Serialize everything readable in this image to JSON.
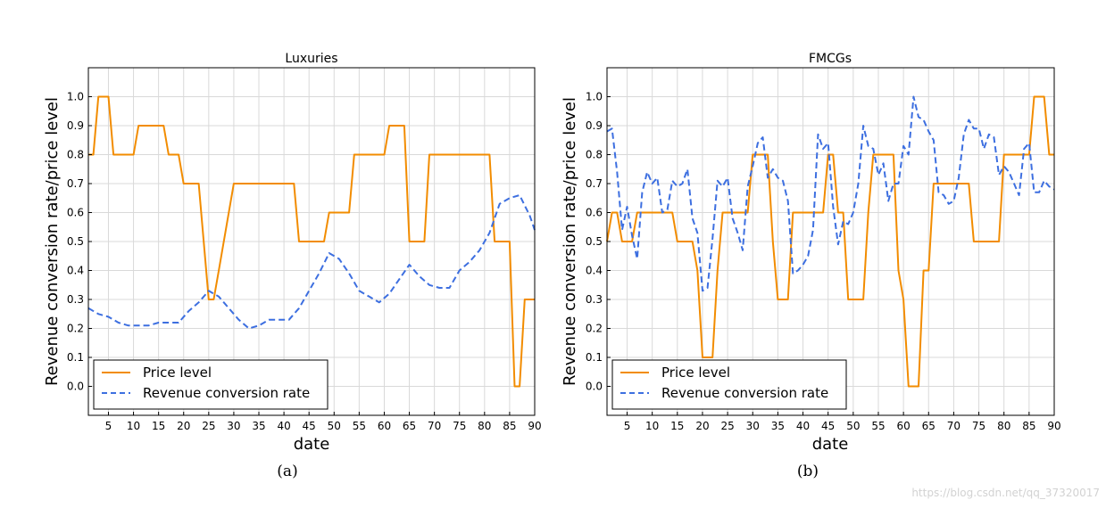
{
  "colors": {
    "price": "#f28c00",
    "revenue": "#3d6fe0",
    "grid": "#d9d9d9"
  },
  "watermark": "https://blog.csdn.net/qq_37320017",
  "chart_data": [
    {
      "type": "line",
      "title": "Luxuries",
      "caption": "(a)",
      "xlabel": "date",
      "ylabel": "Revenue conversion rate/price level",
      "xlim": [
        1,
        90
      ],
      "ylim": [
        -0.1,
        1.1
      ],
      "xticks": [
        5,
        10,
        15,
        20,
        25,
        30,
        35,
        40,
        45,
        50,
        55,
        60,
        65,
        70,
        75,
        80,
        85,
        90
      ],
      "yticks": [
        0.0,
        0.1,
        0.2,
        0.3,
        0.4,
        0.5,
        0.6,
        0.7,
        0.8,
        0.9,
        1.0
      ],
      "legend_position": "lower-left",
      "series": [
        {
          "name": "Price level",
          "style": "solid",
          "x": [
            1,
            2,
            3,
            4,
            5,
            6,
            7,
            8,
            9,
            10,
            11,
            12,
            13,
            14,
            15,
            16,
            17,
            18,
            19,
            20,
            21,
            22,
            23,
            24,
            25,
            26,
            27,
            28,
            29,
            30,
            31,
            32,
            33,
            34,
            35,
            36,
            37,
            38,
            39,
            40,
            41,
            42,
            43,
            44,
            45,
            46,
            47,
            48,
            49,
            50,
            51,
            52,
            53,
            54,
            55,
            56,
            57,
            58,
            59,
            60,
            61,
            62,
            63,
            64,
            65,
            66,
            67,
            68,
            69,
            70,
            71,
            72,
            73,
            74,
            75,
            76,
            77,
            78,
            79,
            80,
            81,
            82,
            83,
            84,
            85,
            86,
            87,
            88,
            89,
            90
          ],
          "values": [
            0.8,
            0.8,
            1.0,
            1.0,
            1.0,
            0.8,
            0.8,
            0.8,
            0.8,
            0.8,
            0.9,
            0.9,
            0.9,
            0.9,
            0.9,
            0.9,
            0.8,
            0.8,
            0.8,
            0.7,
            0.7,
            0.7,
            0.7,
            0.5,
            0.3,
            0.3,
            0.4,
            0.5,
            0.6,
            0.7,
            0.7,
            0.7,
            0.7,
            0.7,
            0.7,
            0.7,
            0.7,
            0.7,
            0.7,
            0.7,
            0.7,
            0.7,
            0.5,
            0.5,
            0.5,
            0.5,
            0.5,
            0.5,
            0.6,
            0.6,
            0.6,
            0.6,
            0.6,
            0.8,
            0.8,
            0.8,
            0.8,
            0.8,
            0.8,
            0.8,
            0.9,
            0.9,
            0.9,
            0.9,
            0.5,
            0.5,
            0.5,
            0.5,
            0.8,
            0.8,
            0.8,
            0.8,
            0.8,
            0.8,
            0.8,
            0.8,
            0.8,
            0.8,
            0.8,
            0.8,
            0.8,
            0.5,
            0.5,
            0.5,
            0.5,
            0.0,
            0.0,
            0.3,
            0.3,
            0.3
          ]
        },
        {
          "name": "Revenue conversion rate",
          "style": "dashed",
          "x": [
            1,
            3,
            5,
            7,
            9,
            11,
            13,
            15,
            17,
            19,
            21,
            23,
            25,
            27,
            29,
            31,
            33,
            35,
            37,
            39,
            41,
            43,
            45,
            47,
            49,
            51,
            53,
            55,
            57,
            59,
            61,
            63,
            65,
            67,
            69,
            71,
            73,
            75,
            77,
            79,
            81,
            83,
            85,
            87,
            89,
            90
          ],
          "values": [
            0.27,
            0.25,
            0.24,
            0.22,
            0.21,
            0.21,
            0.21,
            0.22,
            0.22,
            0.22,
            0.26,
            0.29,
            0.33,
            0.31,
            0.27,
            0.23,
            0.2,
            0.21,
            0.23,
            0.23,
            0.23,
            0.27,
            0.33,
            0.39,
            0.46,
            0.44,
            0.39,
            0.33,
            0.31,
            0.29,
            0.32,
            0.37,
            0.42,
            0.38,
            0.35,
            0.34,
            0.34,
            0.4,
            0.43,
            0.47,
            0.53,
            0.63,
            0.65,
            0.66,
            0.59,
            0.54
          ]
        }
      ]
    },
    {
      "type": "line",
      "title": "FMCGs",
      "caption": "(b)",
      "xlabel": "date",
      "ylabel": "Revenue conversion rate/price level",
      "xlim": [
        1,
        90
      ],
      "ylim": [
        -0.1,
        1.1
      ],
      "xticks": [
        5,
        10,
        15,
        20,
        25,
        30,
        35,
        40,
        45,
        50,
        55,
        60,
        65,
        70,
        75,
        80,
        85,
        90
      ],
      "yticks": [
        0.0,
        0.1,
        0.2,
        0.3,
        0.4,
        0.5,
        0.6,
        0.7,
        0.8,
        0.9,
        1.0
      ],
      "legend_position": "lower-left",
      "series": [
        {
          "name": "Price level",
          "style": "solid",
          "x": [
            1,
            2,
            3,
            4,
            5,
            6,
            7,
            8,
            9,
            10,
            11,
            12,
            13,
            14,
            15,
            16,
            17,
            18,
            19,
            20,
            21,
            22,
            23,
            24,
            25,
            26,
            27,
            28,
            29,
            30,
            31,
            32,
            33,
            34,
            35,
            36,
            37,
            38,
            39,
            40,
            41,
            42,
            43,
            44,
            45,
            46,
            47,
            48,
            49,
            50,
            51,
            52,
            53,
            54,
            55,
            56,
            57,
            58,
            59,
            60,
            61,
            62,
            63,
            64,
            65,
            66,
            67,
            68,
            69,
            70,
            71,
            72,
            73,
            74,
            75,
            76,
            77,
            78,
            79,
            80,
            81,
            82,
            83,
            84,
            85,
            86,
            87,
            88,
            89,
            90
          ],
          "values": [
            0.5,
            0.6,
            0.6,
            0.5,
            0.5,
            0.5,
            0.6,
            0.6,
            0.6,
            0.6,
            0.6,
            0.6,
            0.6,
            0.6,
            0.5,
            0.5,
            0.5,
            0.5,
            0.4,
            0.1,
            0.1,
            0.1,
            0.4,
            0.6,
            0.6,
            0.6,
            0.6,
            0.6,
            0.6,
            0.8,
            0.8,
            0.8,
            0.8,
            0.5,
            0.3,
            0.3,
            0.3,
            0.6,
            0.6,
            0.6,
            0.6,
            0.6,
            0.6,
            0.6,
            0.8,
            0.8,
            0.6,
            0.6,
            0.3,
            0.3,
            0.3,
            0.3,
            0.6,
            0.8,
            0.8,
            0.8,
            0.8,
            0.8,
            0.4,
            0.3,
            0.0,
            0.0,
            0.0,
            0.4,
            0.4,
            0.7,
            0.7,
            0.7,
            0.7,
            0.7,
            0.7,
            0.7,
            0.7,
            0.5,
            0.5,
            0.5,
            0.5,
            0.5,
            0.5,
            0.8,
            0.8,
            0.8,
            0.8,
            0.8,
            0.8,
            1.0,
            1.0,
            1.0,
            0.8,
            0.8
          ]
        },
        {
          "name": "Revenue conversion rate",
          "style": "dashed",
          "x": [
            1,
            2,
            3,
            4,
            5,
            6,
            7,
            8,
            9,
            10,
            11,
            12,
            13,
            14,
            15,
            16,
            17,
            18,
            19,
            20,
            21,
            22,
            23,
            24,
            25,
            26,
            27,
            28,
            29,
            30,
            31,
            32,
            33,
            34,
            35,
            36,
            37,
            38,
            39,
            40,
            41,
            42,
            43,
            44,
            45,
            46,
            47,
            48,
            49,
            50,
            51,
            52,
            53,
            54,
            55,
            56,
            57,
            58,
            59,
            60,
            61,
            62,
            63,
            64,
            65,
            66,
            67,
            68,
            69,
            70,
            71,
            72,
            73,
            74,
            75,
            76,
            77,
            78,
            79,
            80,
            81,
            82,
            83,
            84,
            85,
            86,
            87,
            88,
            89,
            90
          ],
          "values": [
            0.88,
            0.89,
            0.74,
            0.54,
            0.62,
            0.52,
            0.44,
            0.67,
            0.74,
            0.7,
            0.72,
            0.6,
            0.61,
            0.71,
            0.69,
            0.7,
            0.75,
            0.58,
            0.53,
            0.33,
            0.34,
            0.51,
            0.71,
            0.69,
            0.72,
            0.58,
            0.53,
            0.47,
            0.69,
            0.76,
            0.84,
            0.86,
            0.72,
            0.75,
            0.72,
            0.71,
            0.64,
            0.39,
            0.4,
            0.42,
            0.45,
            0.54,
            0.87,
            0.82,
            0.84,
            0.62,
            0.49,
            0.57,
            0.56,
            0.6,
            0.7,
            0.9,
            0.83,
            0.82,
            0.73,
            0.77,
            0.64,
            0.7,
            0.7,
            0.83,
            0.8,
            1.0,
            0.93,
            0.92,
            0.88,
            0.85,
            0.67,
            0.66,
            0.63,
            0.64,
            0.72,
            0.87,
            0.92,
            0.89,
            0.89,
            0.82,
            0.87,
            0.86,
            0.73,
            0.76,
            0.74,
            0.7,
            0.66,
            0.82,
            0.84,
            0.67,
            0.67,
            0.71,
            0.69,
            0.68
          ]
        }
      ]
    }
  ]
}
